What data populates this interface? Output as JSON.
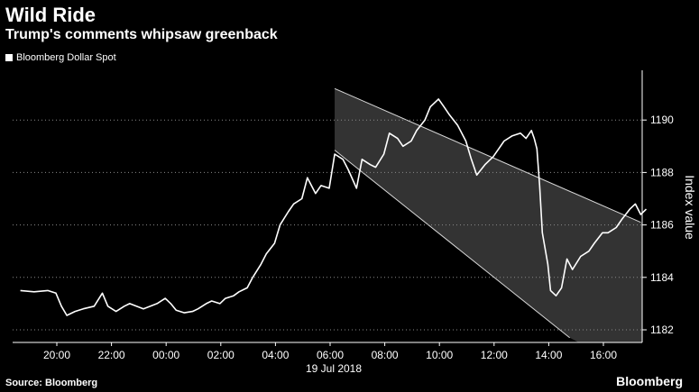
{
  "title": "Wild Ride",
  "subtitle": "Trump's comments whipsaw greenback",
  "legend": {
    "series_label": "Bloomberg Dollar Spot"
  },
  "source": "Source: Bloomberg",
  "brand": "Bloomberg",
  "date_label": "19 Jul 2018",
  "colors": {
    "background": "#000000",
    "line": "#ffffff",
    "channel_fill": "#333333",
    "channel_edge": "#d8d8d8",
    "grid": "#8a8a8a"
  },
  "chart_data": {
    "type": "line",
    "title": "Wild Ride",
    "subtitle": "Trump's comments whipsaw greenback",
    "ylabel": "Index value",
    "xlabel": "",
    "x_unit": "hours since 18:40 on 18 Jul 2018",
    "x_tick_labels": [
      "20:00",
      "22:00",
      "00:00",
      "02:00",
      "04:00",
      "06:00",
      "08:00",
      "10:00",
      "12:00",
      "14:00",
      "16:00"
    ],
    "y_ticks": [
      1182,
      1184,
      1186,
      1188,
      1190
    ],
    "ylim": [
      1181.8,
      1191.1
    ],
    "xlim": [
      0,
      23.0
    ],
    "grid": "horizontal dotted",
    "legend_placement": "top-left",
    "series": [
      {
        "name": "Bloomberg Dollar Spot",
        "points": [
          [
            0.0,
            1183.5
          ],
          [
            0.5,
            1183.45
          ],
          [
            1.0,
            1183.5
          ],
          [
            1.3,
            1183.4
          ],
          [
            1.5,
            1182.9
          ],
          [
            1.7,
            1182.55
          ],
          [
            2.0,
            1182.7
          ],
          [
            2.3,
            1182.8
          ],
          [
            2.7,
            1182.9
          ],
          [
            3.0,
            1183.4
          ],
          [
            3.2,
            1182.9
          ],
          [
            3.5,
            1182.7
          ],
          [
            3.8,
            1182.9
          ],
          [
            4.0,
            1183.0
          ],
          [
            4.5,
            1182.8
          ],
          [
            5.0,
            1183.0
          ],
          [
            5.3,
            1183.2
          ],
          [
            5.5,
            1183.0
          ],
          [
            5.7,
            1182.75
          ],
          [
            6.0,
            1182.65
          ],
          [
            6.3,
            1182.7
          ],
          [
            6.5,
            1182.8
          ],
          [
            6.8,
            1183.0
          ],
          [
            7.0,
            1183.1
          ],
          [
            7.3,
            1183.0
          ],
          [
            7.5,
            1183.2
          ],
          [
            7.8,
            1183.3
          ],
          [
            8.0,
            1183.45
          ],
          [
            8.3,
            1183.6
          ],
          [
            8.5,
            1184.0
          ],
          [
            8.8,
            1184.5
          ],
          [
            9.0,
            1184.9
          ],
          [
            9.3,
            1185.3
          ],
          [
            9.5,
            1186.0
          ],
          [
            9.8,
            1186.5
          ],
          [
            10.0,
            1186.8
          ],
          [
            10.3,
            1187.0
          ],
          [
            10.5,
            1187.8
          ],
          [
            10.8,
            1187.2
          ],
          [
            11.0,
            1187.5
          ],
          [
            11.3,
            1187.4
          ],
          [
            11.5,
            1188.7
          ],
          [
            11.8,
            1188.5
          ],
          [
            12.0,
            1188.1
          ],
          [
            12.3,
            1187.4
          ],
          [
            12.5,
            1188.5
          ],
          [
            12.8,
            1188.3
          ],
          [
            13.0,
            1188.2
          ],
          [
            13.3,
            1188.7
          ],
          [
            13.5,
            1189.5
          ],
          [
            13.8,
            1189.3
          ],
          [
            14.0,
            1189.0
          ],
          [
            14.3,
            1189.2
          ],
          [
            14.5,
            1189.6
          ],
          [
            14.8,
            1190.0
          ],
          [
            15.0,
            1190.5
          ],
          [
            15.3,
            1190.8
          ],
          [
            15.5,
            1190.5
          ],
          [
            15.7,
            1190.2
          ],
          [
            16.0,
            1189.8
          ],
          [
            16.3,
            1189.2
          ],
          [
            16.5,
            1188.5
          ],
          [
            16.7,
            1187.9
          ],
          [
            17.0,
            1188.3
          ],
          [
            17.3,
            1188.6
          ],
          [
            17.5,
            1188.9
          ],
          [
            17.7,
            1189.2
          ],
          [
            18.0,
            1189.4
          ],
          [
            18.3,
            1189.5
          ],
          [
            18.5,
            1189.3
          ],
          [
            18.7,
            1189.6
          ],
          [
            18.8,
            1189.3
          ],
          [
            18.9,
            1188.9
          ],
          [
            19.0,
            1187.5
          ],
          [
            19.1,
            1185.7
          ],
          [
            19.3,
            1184.5
          ],
          [
            19.4,
            1183.5
          ],
          [
            19.6,
            1183.3
          ],
          [
            19.8,
            1183.6
          ],
          [
            20.0,
            1184.7
          ],
          [
            20.2,
            1184.3
          ],
          [
            20.5,
            1184.8
          ],
          [
            20.8,
            1185.0
          ],
          [
            21.0,
            1185.3
          ],
          [
            21.3,
            1185.7
          ],
          [
            21.5,
            1185.7
          ],
          [
            21.8,
            1185.9
          ],
          [
            22.0,
            1186.2
          ],
          [
            22.3,
            1186.6
          ],
          [
            22.5,
            1186.8
          ],
          [
            22.7,
            1186.4
          ],
          [
            22.9,
            1186.6
          ]
        ]
      }
    ],
    "channel": {
      "upper": [
        [
          11.5,
          1191.2
        ],
        [
          22.7,
          1186.1
        ]
      ],
      "lower": [
        [
          11.5,
          1188.85
        ],
        [
          20.1,
          1181.7
        ]
      ]
    }
  }
}
